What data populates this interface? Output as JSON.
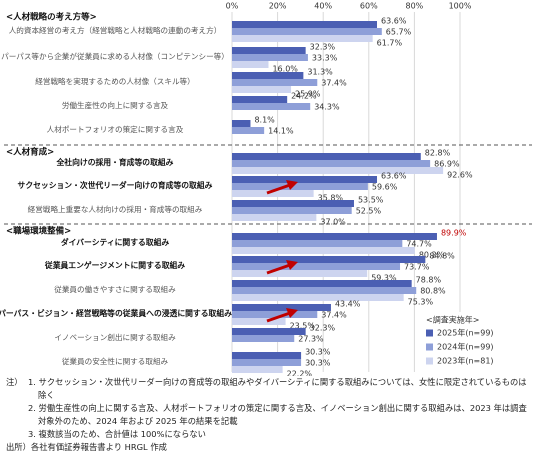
{
  "chart_data": {
    "type": "bar",
    "orientation": "horizontal",
    "xlim": [
      0,
      100
    ],
    "xticks": [
      {
        "value": 0,
        "label": "0%"
      },
      {
        "value": 20,
        "label": "20%"
      },
      {
        "value": 40,
        "label": "40%"
      },
      {
        "value": 60,
        "label": "60%"
      },
      {
        "value": 80,
        "label": "80%"
      },
      {
        "value": 100,
        "label": "100%"
      }
    ],
    "grid": true,
    "legend": {
      "title": "<調査実施年>",
      "position": "lower right",
      "entries": [
        {
          "name": "2025年(n=99)",
          "color": "#4b5fb3"
        },
        {
          "name": "2024年(n=99)",
          "color": "#8e9fd8"
        },
        {
          "name": "2023年(n=81)",
          "color": "#cdd4ef"
        }
      ]
    },
    "groups": [
      {
        "title": "<人材戦略の考え方等>",
        "categories": [
          "人的資本経営の考え方（経営戦略と人材戦略の連動の考え方）",
          "パーパス等から企業が従業員に求める人材像（コンピテンシー等）",
          "経営戦略を実現するための人材像（スキル等）",
          "労働生産性の向上に関する言及",
          "人材ポートフォリオの策定に関する言及"
        ],
        "series": [
          {
            "values": [
              63.6,
              32.3,
              31.3,
              24.2,
              8.1
            ],
            "value_labels": [
              "63.6%",
              "32.3%",
              "31.3%",
              "24.2%",
              "8.1%"
            ]
          },
          {
            "values": [
              65.7,
              33.3,
              37.4,
              34.3,
              14.1
            ],
            "value_labels": [
              "65.7%",
              "33.3%",
              "37.4%",
              "34.3%",
              "14.1%"
            ]
          },
          {
            "values": [
              61.7,
              16.0,
              25.9,
              null,
              null
            ],
            "value_labels": [
              "61.7%",
              "16.0%",
              "25.9%",
              null,
              null
            ]
          }
        ]
      },
      {
        "title": "<人材育成>",
        "categories": [
          "全社向けの採用・育成等の取組み",
          "サクセッション・次世代リーダー向けの育成等の取組み",
          "経営戦略上重要な人材向けの採用・育成等の取組み"
        ],
        "series": [
          {
            "values": [
              82.8,
              63.6,
              53.5
            ],
            "value_labels": [
              "82.8%",
              "63.6%",
              "53.5%"
            ]
          },
          {
            "values": [
              86.9,
              59.6,
              52.5
            ],
            "value_labels": [
              "86.9%",
              "59.6%",
              "52.5%"
            ]
          },
          {
            "values": [
              92.6,
              35.8,
              37.0
            ],
            "value_labels": [
              "92.6%",
              "35.8%",
              "37.0%"
            ]
          }
        ]
      },
      {
        "title": "<職場環境整備>",
        "categories": [
          "ダイバーシティに関する取組み",
          "従業員エンゲージメントに関する取組み",
          "従業員の働きやすさに関する取組み",
          "パーパス・ビジョン・経営戦略等の従業員への浸透に関する取組み",
          "イノベーション創出に関する取組み",
          "従業員の安全性に関する取組み"
        ],
        "series": [
          {
            "values": [
              89.9,
              84.8,
              78.8,
              43.4,
              32.3,
              30.3
            ],
            "value_labels": [
              "89.9%",
              "84.8%",
              "78.8%",
              "43.4%",
              "32.3%",
              "30.3%"
            ]
          },
          {
            "values": [
              74.7,
              73.7,
              80.8,
              37.4,
              27.3,
              30.3
            ],
            "value_labels": [
              "74.7%",
              "73.7%",
              "80.8%",
              "37.4%",
              "27.3%",
              "30.3%"
            ]
          },
          {
            "values": [
              80.2,
              59.3,
              75.3,
              23.5,
              null,
              22.2
            ],
            "value_labels": [
              "80.2%",
              "59.3%",
              "75.3%",
              "23.5%",
              null,
              "22.2%"
            ]
          }
        ]
      }
    ]
  },
  "notes": {
    "label": "注）",
    "items": [
      "1. サクセッション・次世代リーダー向けの育成等の取組みやダイバーシティに関する取組みについては、女性に限定されているものは除く",
      "2. 労働生産性の向上に関する言及、人材ポートフォリオの策定に関する言及、イノベーション創出に関する取組みは、2023 年は調査対象外のため、2024 年および 2025 年の結果を記載",
      "3. 複数該当のため、合計値は 100%にならない"
    ]
  },
  "source": "出所）各社有価証券報告書より HRGL 作成"
}
